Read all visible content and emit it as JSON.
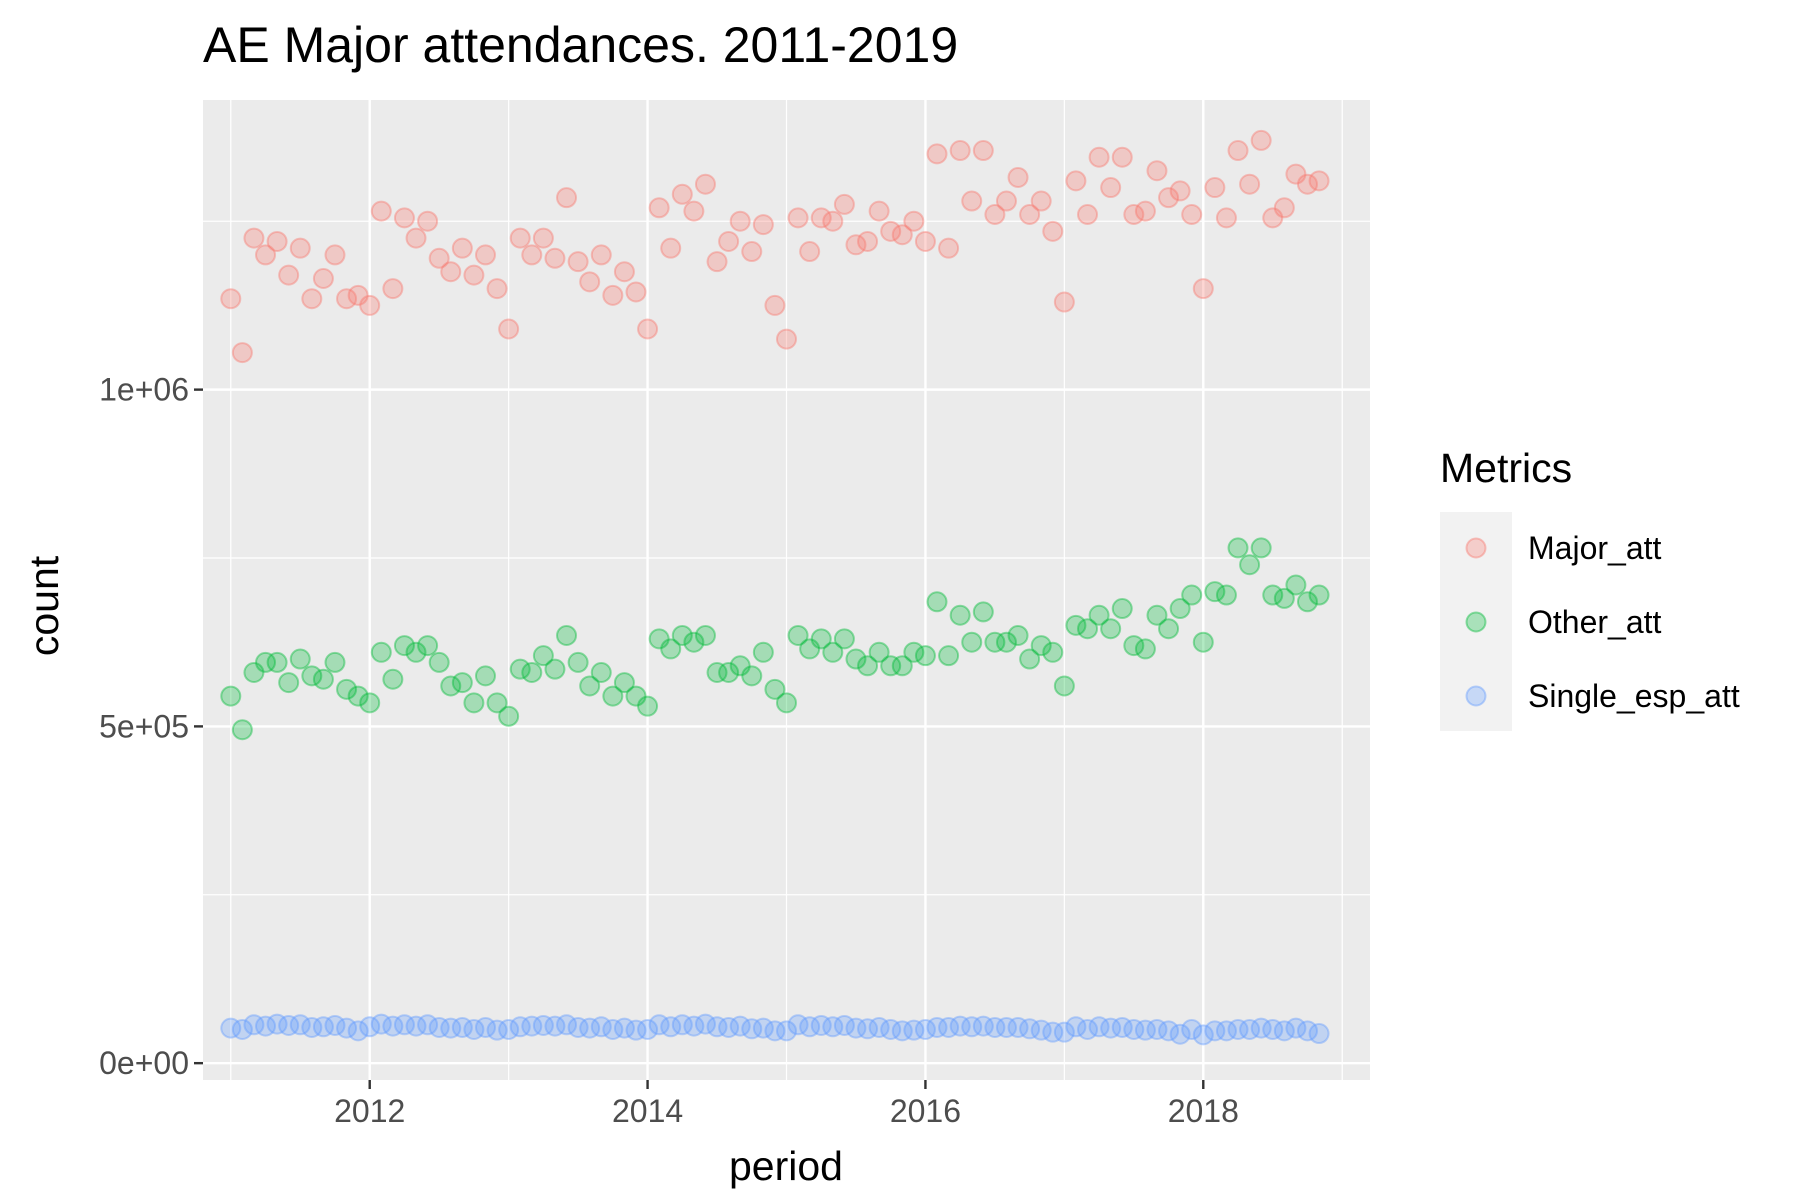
{
  "chart_data": {
    "type": "scatter",
    "title": "AE Major attendances. 2011-2019",
    "xlabel": "period",
    "ylabel": "count",
    "x_ticks": [
      "2012",
      "2014",
      "2016",
      "2018"
    ],
    "x_tick_values": [
      2012,
      2014,
      2016,
      2018
    ],
    "y_ticks": [
      "0e+00",
      "5e+05",
      "1e+06"
    ],
    "y_tick_values": [
      0,
      500000,
      1000000
    ],
    "xlim": [
      2010.8,
      2019.2
    ],
    "ylim": [
      -25000,
      1430000
    ],
    "grid": true,
    "legend": {
      "title": "Metrics",
      "placement": "right",
      "entries": [
        "Major_att",
        "Other_att",
        "Single_esp_att"
      ]
    },
    "x_start": "2011-01",
    "x_end": "2018-12",
    "series": [
      {
        "name": "Major_att",
        "color": "#F8766D",
        "values": [
          1135000,
          1055000,
          1225000,
          1200000,
          1220000,
          1170000,
          1210000,
          1135000,
          1165000,
          1200000,
          1135000,
          1140000,
          1125000,
          1265000,
          1150000,
          1255000,
          1225000,
          1250000,
          1195000,
          1175000,
          1210000,
          1170000,
          1200000,
          1150000,
          1090000,
          1225000,
          1200000,
          1225000,
          1195000,
          1285000,
          1190000,
          1160000,
          1200000,
          1140000,
          1175000,
          1145000,
          1090000,
          1270000,
          1210000,
          1290000,
          1265000,
          1305000,
          1190000,
          1220000,
          1250000,
          1205000,
          1245000,
          1125000,
          1075000,
          1255000,
          1205000,
          1255000,
          1250000,
          1275000,
          1215000,
          1220000,
          1265000,
          1235000,
          1230000,
          1250000,
          1220000,
          1350000,
          1210000,
          1355000,
          1280000,
          1355000,
          1260000,
          1280000,
          1315000,
          1260000,
          1280000,
          1235000,
          1130000,
          1310000,
          1260000,
          1345000,
          1300000,
          1345000,
          1260000,
          1265000,
          1325000,
          1285000,
          1295000,
          1260000,
          1150000,
          1300000,
          1255000,
          1355000,
          1305000,
          1370000,
          1255000,
          1270000,
          1320000,
          1305000,
          1310000
        ]
      },
      {
        "name": "Other_att",
        "color": "#00BA38",
        "values": [
          545000,
          495000,
          580000,
          595000,
          595000,
          565000,
          600000,
          575000,
          570000,
          595000,
          555000,
          545000,
          535000,
          610000,
          570000,
          620000,
          610000,
          620000,
          595000,
          560000,
          565000,
          535000,
          575000,
          535000,
          515000,
          585000,
          580000,
          605000,
          585000,
          635000,
          595000,
          560000,
          580000,
          545000,
          565000,
          545000,
          530000,
          630000,
          615000,
          635000,
          625000,
          635000,
          580000,
          580000,
          590000,
          575000,
          610000,
          555000,
          535000,
          635000,
          615000,
          630000,
          610000,
          630000,
          600000,
          590000,
          610000,
          590000,
          590000,
          610000,
          605000,
          685000,
          605000,
          665000,
          625000,
          670000,
          625000,
          625000,
          635000,
          600000,
          620000,
          610000,
          560000,
          650000,
          645000,
          665000,
          645000,
          675000,
          620000,
          615000,
          665000,
          645000,
          675000,
          695000,
          625000,
          700000,
          695000,
          765000,
          740000,
          765000,
          695000,
          690000,
          710000,
          685000,
          695000
        ]
      },
      {
        "name": "Single_esp_att",
        "color": "#619CFF",
        "values": [
          52000,
          50000,
          57000,
          55000,
          58000,
          56000,
          57000,
          53000,
          54000,
          56000,
          52000,
          48000,
          54000,
          58000,
          55000,
          57000,
          55000,
          57000,
          53000,
          52000,
          53000,
          50000,
          53000,
          49000,
          50000,
          54000,
          55000,
          56000,
          55000,
          57000,
          53000,
          52000,
          54000,
          50000,
          52000,
          49000,
          50000,
          57000,
          54000,
          57000,
          55000,
          58000,
          54000,
          53000,
          55000,
          51000,
          52000,
          48000,
          48000,
          57000,
          54000,
          56000,
          54000,
          56000,
          52000,
          51000,
          53000,
          50000,
          48000,
          49000,
          50000,
          53000,
          53000,
          55000,
          54000,
          55000,
          53000,
          53000,
          53000,
          51000,
          49000,
          46000,
          46000,
          54000,
          50000,
          54000,
          52000,
          53000,
          50000,
          49000,
          50000,
          48000,
          43000,
          50000,
          42000,
          48000,
          48000,
          50000,
          50000,
          52000,
          50000,
          48000,
          52000,
          48000,
          44000
        ]
      }
    ]
  }
}
